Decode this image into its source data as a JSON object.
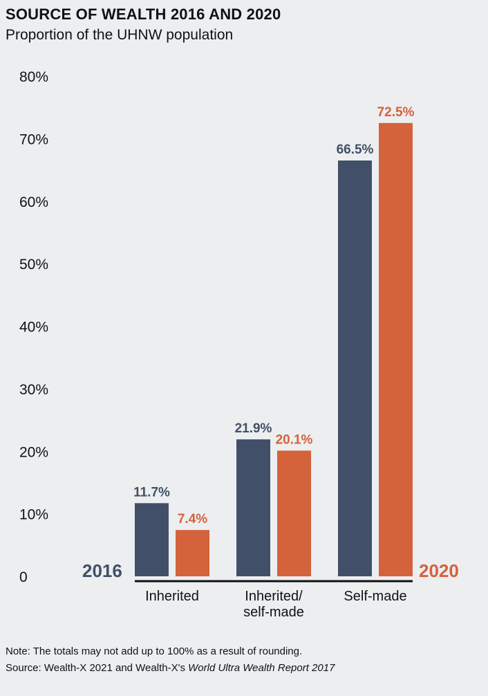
{
  "header": {
    "title": "SOURCE OF WEALTH 2016 AND 2020",
    "subtitle": "Proportion of the UHNW population"
  },
  "chart_data": {
    "type": "bar",
    "title": "SOURCE OF WEALTH 2016 AND 2020",
    "subtitle": "Proportion of the UHNW population",
    "categories": [
      [
        "Inherited"
      ],
      [
        "Inherited/",
        "self-made"
      ],
      [
        "Self-made"
      ]
    ],
    "series": [
      {
        "name": "2016",
        "color": "#415068",
        "values": [
          11.7,
          21.9,
          66.5
        ],
        "labels": [
          "11.7%",
          "21.9%",
          "66.5%"
        ]
      },
      {
        "name": "2020",
        "color": "#d4623a",
        "values": [
          7.4,
          20.1,
          72.5
        ],
        "labels": [
          "7.4%",
          "20.1%",
          "72.5%"
        ]
      }
    ],
    "yticks": [
      {
        "value": 0,
        "label": "0"
      },
      {
        "value": 10,
        "label": "10%"
      },
      {
        "value": 20,
        "label": "20%"
      },
      {
        "value": 30,
        "label": "30%"
      },
      {
        "value": 40,
        "label": "40%"
      },
      {
        "value": 50,
        "label": "50%"
      },
      {
        "value": 60,
        "label": "60%"
      },
      {
        "value": 70,
        "label": "70%"
      },
      {
        "value": 80,
        "label": "80%"
      }
    ],
    "ylim": [
      0,
      80
    ],
    "grid": false,
    "legend": "inline: 2016 left of bars, 2020 right of bars"
  },
  "footer": {
    "note": "Note: The totals may not add up to 100% as a result of rounding.",
    "source_prefix": "Source: Wealth-X 2021 and Wealth-X's ",
    "source_italic": "World Ultra Wealth Report 2017"
  }
}
